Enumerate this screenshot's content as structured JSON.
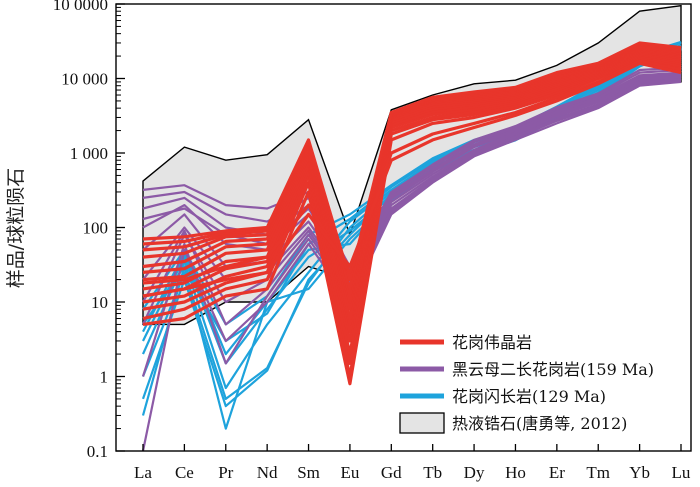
{
  "chart_data": {
    "type": "line",
    "y_scale": "log",
    "ylim": [
      0.1,
      100000
    ],
    "ylabel": "样品/球粒陨石",
    "y_tick_labels": [
      "0.1",
      "1",
      "10",
      "100",
      "1 000",
      "10 000",
      "10 0000"
    ],
    "y_tick_values": [
      0.1,
      1,
      10,
      100,
      1000,
      10000,
      100000
    ],
    "categories": [
      "La",
      "Ce",
      "Pr",
      "Nd",
      "Sm",
      "Eu",
      "Gd",
      "Tb",
      "Dy",
      "Ho",
      "Er",
      "Tm",
      "Yb",
      "Lu"
    ],
    "legend": [
      {
        "name": "花岗伟晶岩",
        "color": "#e8352b",
        "kind": "line"
      },
      {
        "name": "黑云母二长花岗岩(159 Ma)",
        "color": "#8c5aa6",
        "kind": "line"
      },
      {
        "name": "花岗闪长岩(129 Ma)",
        "color": "#1ea3dc",
        "kind": "line"
      },
      {
        "name": "热液锆石(唐勇等, 2012)",
        "color": "#e4e4e4",
        "kind": "area"
      }
    ],
    "legend_position": "bottom-right",
    "envelope": {
      "name": "热液锆石(唐勇等, 2012)",
      "upper": [
        420,
        1200,
        800,
        950,
        2800,
        80,
        3800,
        6000,
        8500,
        9500,
        15000,
        30000,
        80000,
        95000
      ],
      "lower": [
        5,
        5,
        10,
        10,
        30,
        20,
        150,
        400,
        900,
        1500,
        2500,
        4000,
        8000,
        9000
      ]
    },
    "series_groups": [
      {
        "name": "花岗闪长岩(129 Ma)",
        "color": "#1ea3dc",
        "series": [
          [
            0.3,
            30,
            0.2,
            10,
            50,
            60,
            250,
            600,
            1000,
            1500,
            3000,
            6000,
            15000,
            25000
          ],
          [
            0.5,
            20,
            0.4,
            1.2,
            20,
            80,
            280,
            650,
            1100,
            1600,
            3200,
            6500,
            16000,
            26000
          ],
          [
            1,
            25,
            0.5,
            1.3,
            18,
            100,
            300,
            700,
            1200,
            1800,
            3500,
            7000,
            17000,
            27000
          ],
          [
            2,
            35,
            0.7,
            5,
            25,
            120,
            320,
            750,
            1300,
            2000,
            3800,
            7500,
            18000,
            28000
          ],
          [
            3,
            40,
            1.5,
            8,
            40,
            90,
            260,
            620,
            1050,
            1550,
            3100,
            6200,
            15500,
            25500
          ],
          [
            5,
            30,
            3,
            7,
            60,
            130,
            350,
            800,
            1400,
            2100,
            4000,
            8000,
            20000,
            30000
          ],
          [
            8,
            50,
            5,
            12,
            80,
            150,
            370,
            850,
            1500,
            2200,
            4200,
            8500,
            21000,
            31000
          ],
          [
            4,
            45,
            2,
            10,
            15,
            70,
            230,
            580,
            980,
            1480,
            2900,
            5900,
            14500,
            24500
          ]
        ]
      },
      {
        "name": "黑云母二长花岗岩(159 Ma)",
        "color": "#8c5aa6",
        "series": [
          [
            0.1,
            50,
            3,
            10,
            60,
            10,
            150,
            400,
            900,
            1500,
            2500,
            4000,
            8000,
            9000
          ],
          [
            1,
            60,
            1.5,
            12,
            70,
            12,
            160,
            420,
            950,
            1600,
            2700,
            4200,
            8500,
            9500
          ],
          [
            5,
            80,
            10,
            20,
            90,
            15,
            180,
            450,
            1000,
            1700,
            2900,
            4500,
            9000,
            10000
          ],
          [
            20,
            100,
            20,
            25,
            100,
            18,
            200,
            480,
            1050,
            1800,
            3100,
            4800,
            9500,
            10500
          ],
          [
            50,
            150,
            30,
            35,
            120,
            20,
            220,
            520,
            1100,
            1900,
            3300,
            5100,
            10000,
            11000
          ],
          [
            100,
            200,
            60,
            50,
            150,
            22,
            240,
            560,
            1200,
            2000,
            3500,
            5400,
            10500,
            11500
          ],
          [
            180,
            250,
            100,
            80,
            200,
            25,
            260,
            600,
            1300,
            2100,
            3700,
            5700,
            11000,
            12000
          ],
          [
            250,
            300,
            150,
            120,
            250,
            28,
            280,
            650,
            1400,
            2200,
            3900,
            6000,
            12000,
            13000
          ],
          [
            320,
            370,
            200,
            180,
            300,
            30,
            300,
            700,
            1500,
            2300,
            4100,
            6300,
            13000,
            14000
          ],
          [
            130,
            180,
            80,
            60,
            180,
            24,
            250,
            580,
            1250,
            2050,
            3600,
            5500,
            10800,
            11800
          ],
          [
            10,
            90,
            5,
            15,
            80,
            14,
            170,
            440,
            980,
            1650,
            2800,
            4400,
            8800,
            9800
          ]
        ]
      },
      {
        "name": "花岗伟晶岩",
        "color": "#e8352b",
        "series": [
          [
            5,
            6,
            12,
            15,
            300,
            0.8,
            1500,
            2500,
            3000,
            4000,
            6000,
            10000,
            18000,
            14000
          ],
          [
            6,
            8,
            15,
            20,
            400,
            1,
            1800,
            2800,
            3300,
            4300,
            6500,
            10500,
            19000,
            15000
          ],
          [
            8,
            10,
            18,
            25,
            500,
            1.5,
            2000,
            3000,
            3600,
            4600,
            7000,
            11000,
            20000,
            16000
          ],
          [
            10,
            12,
            22,
            30,
            600,
            2,
            2200,
            3300,
            3900,
            4900,
            7500,
            11500,
            21000,
            17000
          ],
          [
            12,
            15,
            28,
            35,
            700,
            3,
            2400,
            3600,
            4200,
            5200,
            8000,
            12000,
            22000,
            18000
          ],
          [
            15,
            18,
            35,
            40,
            800,
            4,
            2600,
            3900,
            4500,
            5500,
            8500,
            12500,
            23000,
            19000
          ],
          [
            20,
            22,
            45,
            50,
            900,
            5,
            2800,
            4200,
            4800,
            5800,
            9000,
            13000,
            24000,
            20000
          ],
          [
            25,
            28,
            55,
            60,
            1000,
            6,
            3000,
            4500,
            5100,
            6100,
            9500,
            13500,
            25000,
            21000
          ],
          [
            30,
            35,
            65,
            70,
            1100,
            8,
            3100,
            4800,
            5400,
            6400,
            10000,
            14000,
            26000,
            22000
          ],
          [
            40,
            45,
            75,
            80,
            1200,
            10,
            3200,
            5000,
            5700,
            6700,
            10500,
            14500,
            27000,
            23000
          ],
          [
            50,
            55,
            80,
            90,
            1300,
            12,
            3300,
            5200,
            6000,
            7000,
            11000,
            15000,
            28000,
            24000
          ],
          [
            60,
            65,
            85,
            95,
            1400,
            15,
            3400,
            5400,
            6300,
            7300,
            11500,
            15500,
            29000,
            25000
          ],
          [
            70,
            75,
            90,
            100,
            1500,
            20,
            3500,
            5600,
            6600,
            7600,
            12000,
            16000,
            30000,
            26000
          ],
          [
            18,
            20,
            30,
            40,
            200,
            25,
            1000,
            1800,
            2500,
            3500,
            5500,
            9000,
            17000,
            13000
          ],
          [
            12,
            15,
            20,
            25,
            150,
            30,
            800,
            1500,
            2200,
            3200,
            5000,
            8500,
            16000,
            12000
          ]
        ]
      }
    ]
  }
}
